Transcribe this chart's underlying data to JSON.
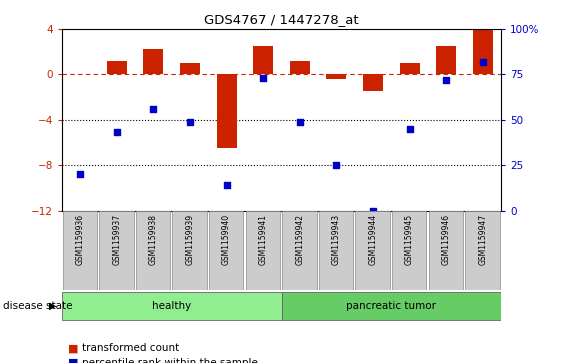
{
  "title": "GDS4767 / 1447278_at",
  "samples": [
    "GSM1159936",
    "GSM1159937",
    "GSM1159938",
    "GSM1159939",
    "GSM1159940",
    "GSM1159941",
    "GSM1159942",
    "GSM1159943",
    "GSM1159944",
    "GSM1159945",
    "GSM1159946",
    "GSM1159947"
  ],
  "bar_values": [
    0.0,
    1.2,
    2.2,
    1.0,
    -6.5,
    2.5,
    1.2,
    -0.4,
    -1.5,
    1.0,
    2.5,
    4.0
  ],
  "dot_percentiles": [
    20,
    43,
    56,
    49,
    14,
    73,
    49,
    25,
    0,
    45,
    72,
    82
  ],
  "bar_color": "#cc2200",
  "dot_color": "#0000cc",
  "dashed_line_color": "#cc2200",
  "dotted_line_color": "#000000",
  "ylim_left": [
    -12,
    4
  ],
  "ylim_right": [
    0,
    100
  ],
  "yticks_left": [
    4,
    0,
    -4,
    -8,
    -12
  ],
  "yticks_right": [
    100,
    75,
    50,
    25,
    0
  ],
  "groups": [
    {
      "label": "healthy",
      "start": 0,
      "end": 6,
      "color": "#90ee90"
    },
    {
      "label": "pancreatic tumor",
      "start": 6,
      "end": 12,
      "color": "#66cc66"
    }
  ],
  "disease_state_label": "disease state",
  "legend_bar_label": "transformed count",
  "legend_dot_label": "percentile rank within the sample",
  "xlabel_bg": "#cccccc",
  "spine_color": "#aaaaaa"
}
